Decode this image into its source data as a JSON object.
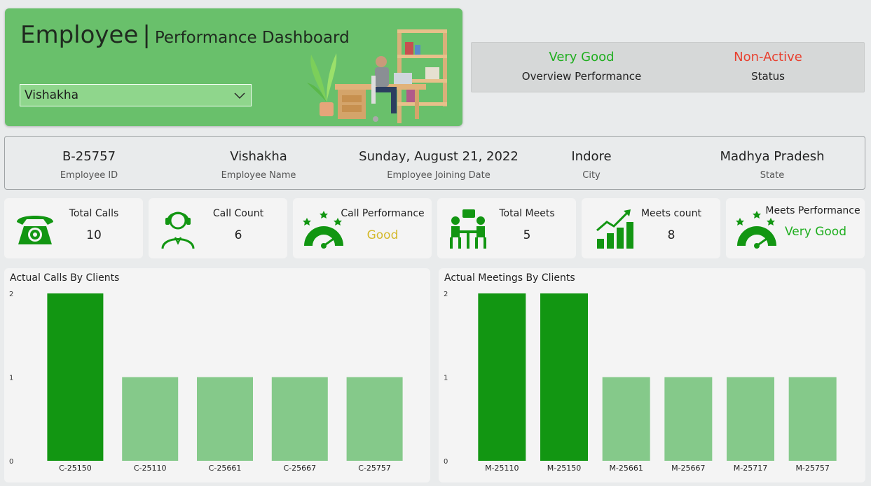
{
  "header": {
    "title_main": "Employee",
    "title_sep": "|",
    "title_sub": "Performance Dashboard",
    "dropdown_value": "Vishakha"
  },
  "summary": {
    "performance_value": "Very Good",
    "performance_label": "Overview Performance",
    "status_value": "Non-Active",
    "status_label": "Status"
  },
  "info": {
    "employee_id": "B-25757",
    "employee_id_label": "Employee ID",
    "employee_name": "Vishakha",
    "employee_name_label": "Employee Name",
    "joining_date": "Sunday, August 21, 2022",
    "joining_date_label": "Employee Joining Date",
    "city": "Indore",
    "city_label": "City",
    "state": "Madhya Pradesh",
    "state_label": "State"
  },
  "kpis": {
    "total_calls_label": "Total Calls",
    "total_calls_value": "10",
    "call_count_label": "Call Count",
    "call_count_value": "6",
    "call_perf_label": "Call Performance",
    "call_perf_value": "Good",
    "total_meets_label": "Total Meets",
    "total_meets_value": "5",
    "meets_count_label": "Meets count",
    "meets_count_value": "8",
    "meets_perf_label": "Meets Performance",
    "meets_perf_value": "Very Good"
  },
  "colors": {
    "accent_green": "#129612",
    "light_green": "#85c98a",
    "good_gold": "#d4b92a",
    "very_good_green": "#1fae1f",
    "non_active_red": "#e8402f"
  },
  "chart_data": [
    {
      "type": "bar",
      "title": "Actual Calls By Clients",
      "categories": [
        "C-25150",
        "C-25110",
        "C-25661",
        "C-25667",
        "C-25757"
      ],
      "values": [
        2,
        1,
        1,
        1,
        1
      ],
      "yticks": [
        0,
        1,
        2
      ],
      "ylim": [
        0,
        2
      ],
      "highlight": [
        0
      ]
    },
    {
      "type": "bar",
      "title": "Actual Meetings By Clients",
      "categories": [
        "M-25110",
        "M-25150",
        "M-25661",
        "M-25667",
        "M-25717",
        "M-25757"
      ],
      "values": [
        2,
        2,
        1,
        1,
        1,
        1
      ],
      "yticks": [
        0,
        1,
        2
      ],
      "ylim": [
        0,
        2
      ],
      "highlight": [
        0,
        1
      ]
    }
  ]
}
